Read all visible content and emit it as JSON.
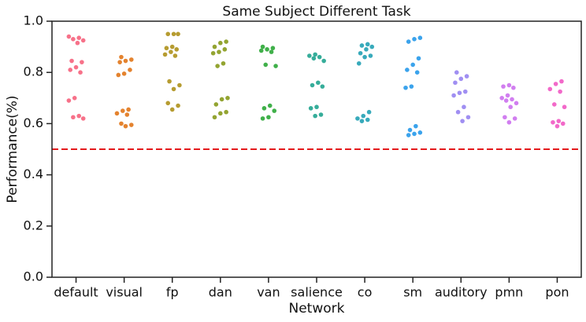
{
  "chart_data": {
    "type": "strip",
    "title": "Same Subject Different Task",
    "xlabel": "Network",
    "ylabel": "Performance(%)",
    "categories": [
      "default",
      "visual",
      "fp",
      "dan",
      "van",
      "salience",
      "co",
      "sm",
      "auditory",
      "pmn",
      "pon"
    ],
    "colors": [
      "#f77189",
      "#e4832f",
      "#b69c31",
      "#93a431",
      "#40b04a",
      "#36ad9a",
      "#38aabb",
      "#3ba3ec",
      "#a08ff2",
      "#d17ef0",
      "#f269c9"
    ],
    "values": [
      [
        0.94,
        0.935,
        0.93,
        0.925,
        0.915,
        0.845,
        0.84,
        0.82,
        0.81,
        0.8,
        0.7,
        0.69,
        0.63,
        0.625,
        0.62
      ],
      [
        0.86,
        0.85,
        0.845,
        0.84,
        0.81,
        0.795,
        0.79,
        0.655,
        0.65,
        0.64,
        0.635,
        0.6,
        0.595,
        0.59
      ],
      [
        0.95,
        0.95,
        0.95,
        0.9,
        0.895,
        0.89,
        0.88,
        0.87,
        0.865,
        0.765,
        0.75,
        0.735,
        0.68,
        0.67,
        0.655
      ],
      [
        0.92,
        0.915,
        0.9,
        0.89,
        0.88,
        0.875,
        0.835,
        0.825,
        0.7,
        0.695,
        0.675,
        0.645,
        0.64,
        0.625
      ],
      [
        0.9,
        0.895,
        0.89,
        0.885,
        0.88,
        0.83,
        0.825,
        0.67,
        0.66,
        0.65,
        0.625,
        0.62
      ],
      [
        0.87,
        0.865,
        0.86,
        0.855,
        0.845,
        0.76,
        0.75,
        0.745,
        0.665,
        0.66,
        0.635,
        0.63
      ],
      [
        0.91,
        0.905,
        0.9,
        0.89,
        0.875,
        0.865,
        0.86,
        0.835,
        0.645,
        0.63,
        0.62,
        0.615,
        0.61
      ],
      [
        0.935,
        0.93,
        0.92,
        0.855,
        0.83,
        0.81,
        0.8,
        0.745,
        0.74,
        0.59,
        0.575,
        0.565,
        0.56,
        0.555
      ],
      [
        0.8,
        0.785,
        0.775,
        0.76,
        0.725,
        0.72,
        0.71,
        0.665,
        0.645,
        0.625,
        0.61
      ],
      [
        0.75,
        0.745,
        0.74,
        0.71,
        0.7,
        0.695,
        0.69,
        0.68,
        0.665,
        0.625,
        0.62,
        0.605
      ],
      [
        0.765,
        0.755,
        0.735,
        0.725,
        0.675,
        0.665,
        0.61,
        0.605,
        0.6,
        0.59
      ]
    ],
    "hline": {
      "value": 0.5,
      "color": "#e41a1c"
    },
    "ylim": [
      0,
      1
    ],
    "yticks": [
      {
        "value": 0,
        "label": "0.0"
      },
      {
        "value": 0.2,
        "label": "0.2"
      },
      {
        "value": 0.4,
        "label": "0.4"
      },
      {
        "value": 0.6,
        "label": "0.6"
      },
      {
        "value": 0.8,
        "label": "0.8"
      },
      {
        "value": 1,
        "label": "1.0"
      }
    ]
  }
}
